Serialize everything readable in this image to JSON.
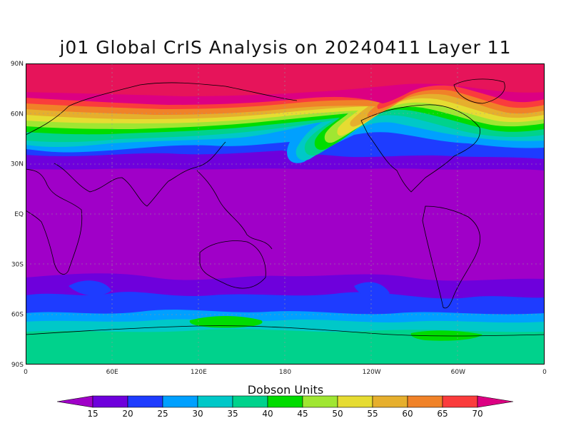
{
  "title": "j01 Global CrIS Analysis on 20240411 Layer 11",
  "map": {
    "lat_labels": [
      "90N",
      "60N",
      "30N",
      "EQ",
      "30S",
      "60S",
      "90S"
    ],
    "lon_labels": [
      "0",
      "60E",
      "120E",
      "180",
      "120W",
      "60W",
      "0"
    ]
  },
  "colorbar": {
    "title": "Dobson Units",
    "ticks": [
      "15",
      "20",
      "25",
      "30",
      "35",
      "40",
      "45",
      "50",
      "55",
      "60",
      "65",
      "70"
    ],
    "colors": [
      "#a000c8",
      "#6e00dc",
      "#1e3cff",
      "#00a0ff",
      "#00c8c8",
      "#00d28c",
      "#00dc00",
      "#a0e632",
      "#e6dc32",
      "#e6af2d",
      "#f08228",
      "#fa3c3c",
      "#f00000",
      "#dc0082"
    ]
  },
  "field_palette": {
    "purple": "#a000c8",
    "violet": "#6e00dc",
    "blue": "#1e3cff",
    "sky": "#00a0ff",
    "cyan": "#00c8c8",
    "teal": "#00d28c",
    "green": "#00dc00",
    "lime": "#a0e632",
    "yellow": "#e6dc32",
    "gold": "#e6af2d",
    "orange": "#f08228",
    "red": "#fa3c3c",
    "crimson": "#dc0082",
    "hotpink": "#e6145a"
  }
}
